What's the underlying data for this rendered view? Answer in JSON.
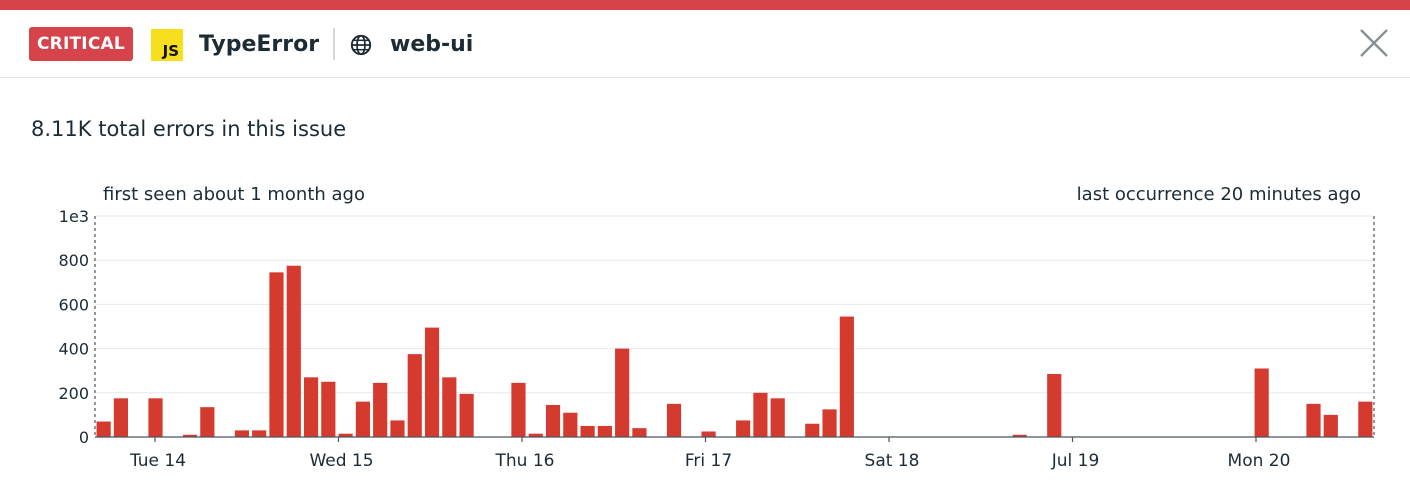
{
  "header": {
    "severity": "CRITICAL",
    "language_badge": "JS",
    "error_type": "TypeError",
    "service": "web-ui",
    "icons": {
      "language": "javascript-icon",
      "service": "globe-icon",
      "close": "close-icon"
    },
    "colors": {
      "accent": "#d7434b",
      "js": "#f7df1e",
      "bar": "#d53a2f"
    }
  },
  "summary": "8.11K total errors in this issue",
  "chart_labels": {
    "first_seen": "first seen about 1 month ago",
    "last_occurrence": "last occurrence 20 minutes ago"
  },
  "chart_data": {
    "type": "bar",
    "y_ticks": [
      "0",
      "200",
      "400",
      "600",
      "800",
      "1e3"
    ],
    "ylim": [
      0,
      1000
    ],
    "x_ticks": [
      "Tue 14",
      "Wed 15",
      "Thu 16",
      "Fri 17",
      "Sat 18",
      "Jul 19",
      "Mon 20"
    ],
    "grid": true,
    "values": [
      70,
      175,
      0,
      175,
      0,
      10,
      135,
      0,
      30,
      30,
      745,
      775,
      270,
      250,
      15,
      160,
      245,
      75,
      375,
      495,
      270,
      195,
      0,
      0,
      245,
      15,
      145,
      110,
      50,
      50,
      400,
      40,
      0,
      150,
      0,
      25,
      0,
      75,
      200,
      175,
      0,
      60,
      125,
      545,
      0,
      0,
      0,
      0,
      0,
      0,
      0,
      0,
      0,
      10,
      0,
      285,
      0,
      0,
      0,
      0,
      0,
      0,
      0,
      0,
      0,
      0,
      0,
      310,
      0,
      0,
      150,
      100,
      0,
      160
    ]
  }
}
